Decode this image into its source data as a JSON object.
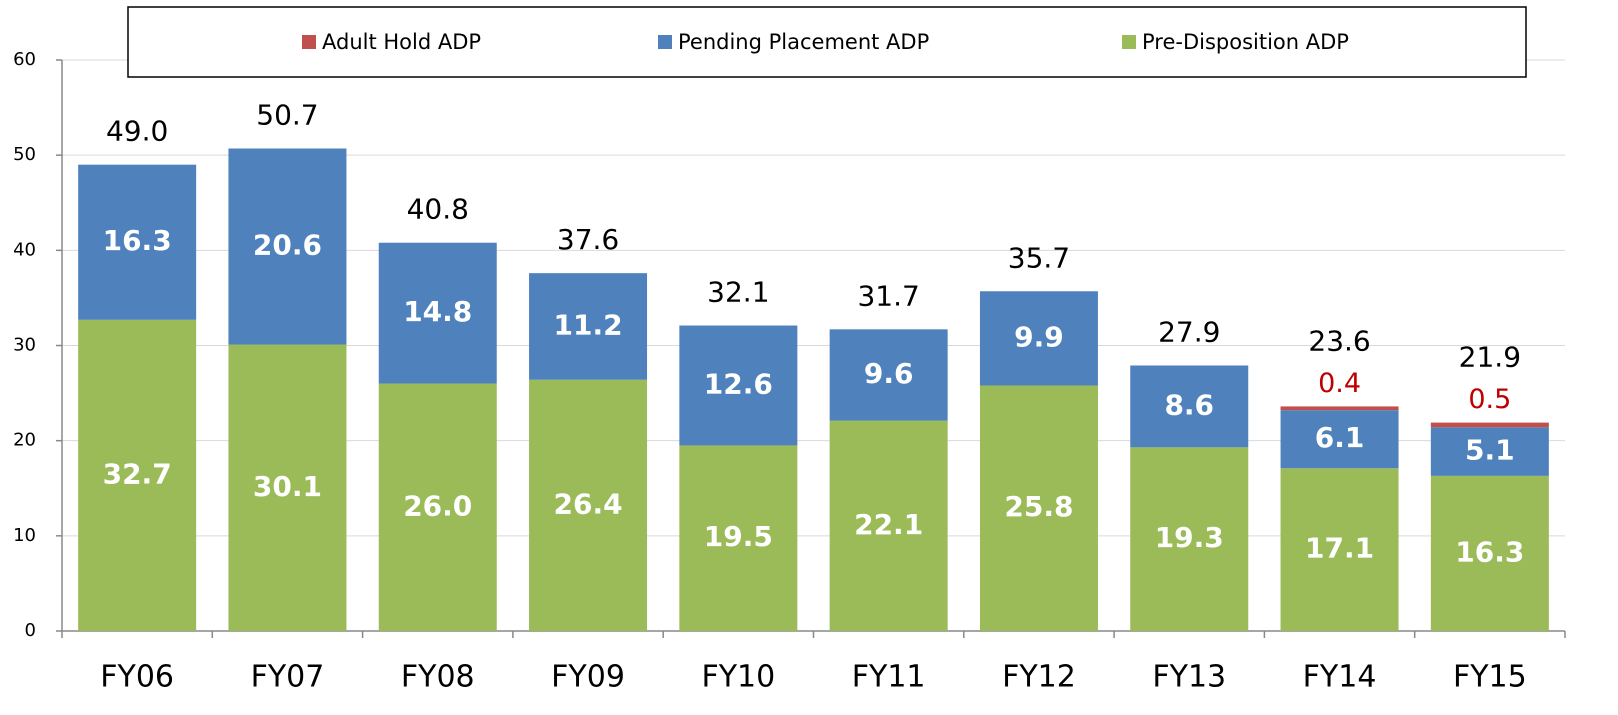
{
  "chart_data": {
    "type": "stacked_bar",
    "categories": [
      "FY06",
      "FY07",
      "FY08",
      "FY09",
      "FY10",
      "FY11",
      "FY12",
      "FY13",
      "FY14",
      "FY15"
    ],
    "series": [
      {
        "name": "Pre-Disposition ADP",
        "color": "#9bbb59",
        "values": [
          32.7,
          30.1,
          26.0,
          26.4,
          19.5,
          22.1,
          25.8,
          19.3,
          17.1,
          16.3
        ],
        "value_labels": [
          "32.7",
          "30.1",
          "26.0",
          "26.4",
          "19.5",
          "22.1",
          "25.8",
          "19.3",
          "17.1",
          "16.3"
        ]
      },
      {
        "name": "Pending Placement ADP",
        "color": "#4f81bd",
        "values": [
          16.3,
          20.6,
          14.8,
          11.2,
          12.6,
          9.6,
          9.9,
          8.6,
          6.1,
          5.1
        ],
        "value_labels": [
          "16.3",
          "20.6",
          "14.8",
          "11.2",
          "12.6",
          "9.6",
          "9.9",
          "8.6",
          "6.1",
          "5.1"
        ]
      },
      {
        "name": "Adult Hold ADP",
        "color": "#c0504d",
        "label_color": "#c00000",
        "values": [
          null,
          null,
          null,
          null,
          null,
          null,
          null,
          null,
          0.4,
          0.5
        ],
        "value_labels": [
          null,
          null,
          null,
          null,
          null,
          null,
          null,
          null,
          "0.4",
          "0.5"
        ]
      }
    ],
    "totals": {
      "values": [
        49.0,
        50.7,
        40.8,
        37.6,
        32.1,
        31.7,
        35.7,
        27.9,
        23.6,
        21.9
      ],
      "value_labels": [
        "49.0",
        "50.7",
        "40.8",
        "37.6",
        "32.1",
        "31.7",
        "35.7",
        "27.9",
        "23.6",
        "21.9"
      ]
    },
    "ylim": [
      0,
      60
    ],
    "yticks": [
      0,
      10,
      20,
      30,
      40,
      50,
      60
    ],
    "grid": true,
    "legend": "top"
  }
}
